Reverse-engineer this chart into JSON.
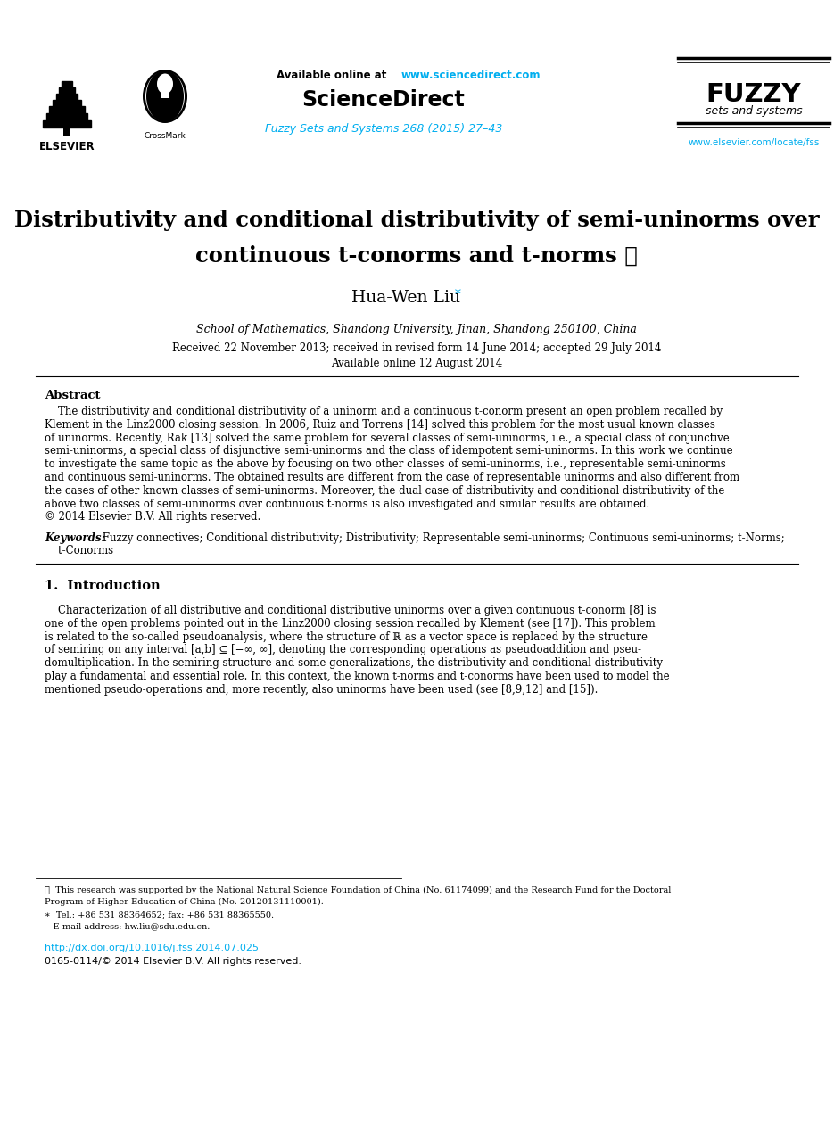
{
  "bg_color": "#ffffff",
  "cyan": "#00aeef",
  "black": "#000000",
  "header_avail": "Available online at ",
  "header_url": "www.sciencedirect.com",
  "header_sd": "ScienceDirect",
  "journal_text": "Fuzzy Sets and Systems 268 (2015) 27–43",
  "fuzzy_line1": "FUZZY",
  "fuzzy_line2": "sets and systems",
  "elsevier_url": "www.elsevier.com/locate/fss",
  "title_line1": "Distributivity and conditional distributivity of semi-uninorms over",
  "title_line2": "continuous t-conorms and t-norms ☆",
  "author": "Hua-Wen Liu",
  "affiliation": "School of Mathematics, Shandong University, Jinan, Shandong 250100, China",
  "received": "Received 22 November 2013; received in revised form 14 June 2014; accepted 29 July 2014",
  "avail_online": "Available online 12 August 2014",
  "abstract_title": "Abstract",
  "abstract_lines": [
    "    The distributivity and conditional distributivity of a uninorm and a continuous t-conorm present an open problem recalled by",
    "Klement in the Linz2000 closing session. In 2006, Ruiz and Torrens [14] solved this problem for the most usual known classes",
    "of uninorms. Recently, Rak [13] solved the same problem for several classes of semi-uninorms, i.e., a special class of conjunctive",
    "semi-uninorms, a special class of disjunctive semi-uninorms and the class of idempotent semi-uninorms. In this work we continue",
    "to investigate the same topic as the above by focusing on two other classes of semi-uninorms, i.e., representable semi-uninorms",
    "and continuous semi-uninorms. The obtained results are different from the case of representable uninorms and also different from",
    "the cases of other known classes of semi-uninorms. Moreover, the dual case of distributivity and conditional distributivity of the",
    "above two classes of semi-uninorms over continuous t-norms is also investigated and similar results are obtained.",
    "© 2014 Elsevier B.V. All rights reserved."
  ],
  "kw_label": "Keywords:",
  "kw_line1": " Fuzzy connectives; Conditional distributivity; Distributivity; Representable semi-uninorms; Continuous semi-uninorms; t-Norms;",
  "kw_line2": "    t-Conorms",
  "intro_title": "1.  Introduction",
  "intro_lines": [
    "    Characterization of all distributive and conditional distributive uninorms over a given continuous t-conorm [8] is",
    "one of the open problems pointed out in the Linz2000 closing session recalled by Klement (see [17]). This problem",
    "is related to the so-called pseudoanalysis, where the structure of ℝ as a vector space is replaced by the structure",
    "of semiring on any interval [a,b] ⊆ [−∞, ∞], denoting the corresponding operations as pseudoaddition and pseu-",
    "domultiplication. In the semiring structure and some generalizations, the distributivity and conditional distributivity",
    "play a fundamental and essential role. In this context, the known t-norms and t-conorms have been used to model the",
    "mentioned pseudo-operations and, more recently, also uninorms have been used (see [8,9,12] and [15])."
  ],
  "fn1": "⋆  This research was supported by the National Natural Science Foundation of China (No. 61174099) and the Research Fund for the Doctoral",
  "fn2": "Program of Higher Education of China (No. 20120131110001).",
  "fn3": "∗  Tel.: +86 531 88364652; fax: +86 531 88365550.",
  "fn4": "   E-mail address: hw.liu@sdu.edu.cn.",
  "doi": "http://dx.doi.org/10.1016/j.fss.2014.07.025",
  "copyright": "0165-0114/© 2014 Elsevier B.V. All rights reserved."
}
